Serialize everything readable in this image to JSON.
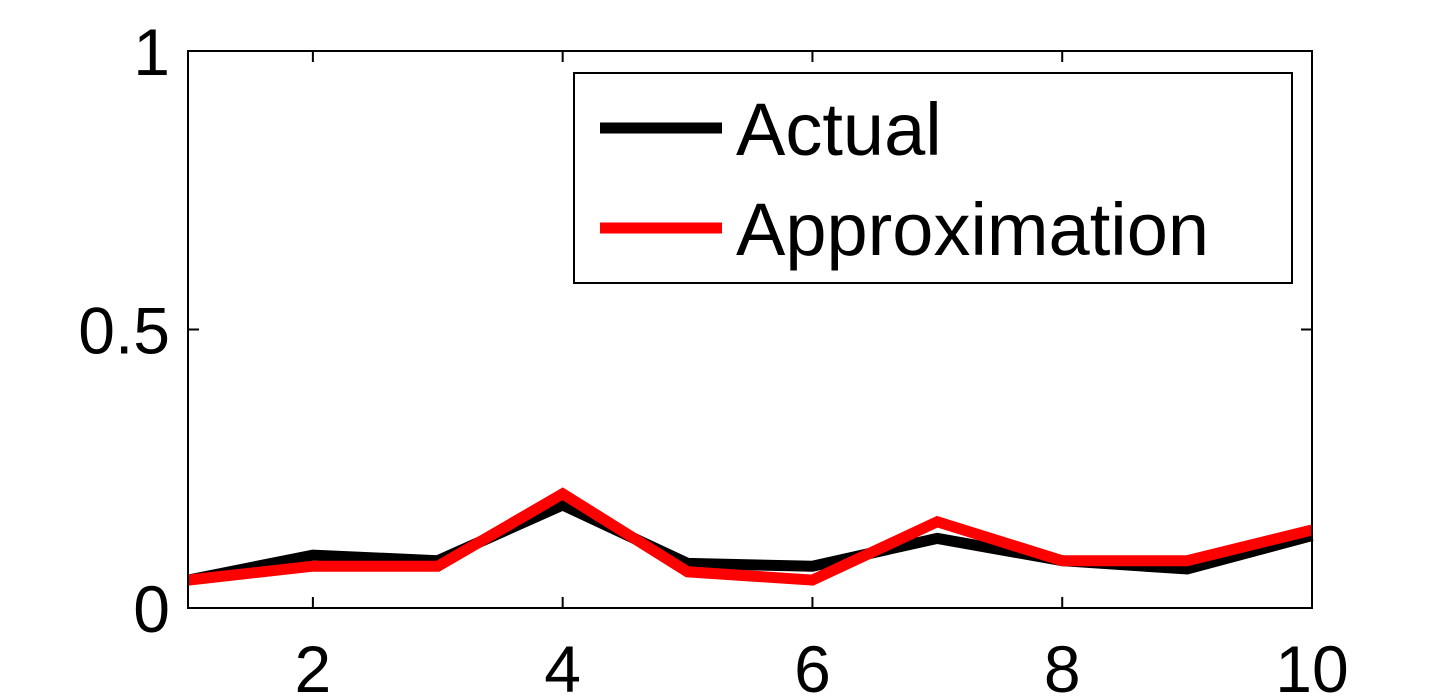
{
  "chart_data": {
    "type": "line",
    "title": "",
    "xlabel": "",
    "ylabel": "",
    "xlim": [
      1,
      10
    ],
    "ylim": [
      0,
      1
    ],
    "x_ticks": [
      "2",
      "4",
      "6",
      "8",
      "10"
    ],
    "x_tick_values": [
      2,
      4,
      6,
      8,
      10
    ],
    "y_ticks": [
      "0",
      "0.5",
      "1"
    ],
    "y_tick_values": [
      0,
      0.5,
      1
    ],
    "grid": false,
    "legend_position": "top-right",
    "x": [
      1,
      2,
      3,
      4,
      5,
      6,
      7,
      8,
      9,
      10
    ],
    "series": [
      {
        "name": "Actual",
        "color": "#000000",
        "values": [
          0.05,
          0.095,
          0.085,
          0.185,
          0.08,
          0.075,
          0.125,
          0.085,
          0.07,
          0.13
        ]
      },
      {
        "name": "Approximation",
        "color": "#ff0000",
        "values": [
          0.05,
          0.075,
          0.075,
          0.205,
          0.065,
          0.05,
          0.155,
          0.085,
          0.085,
          0.14
        ]
      }
    ]
  }
}
